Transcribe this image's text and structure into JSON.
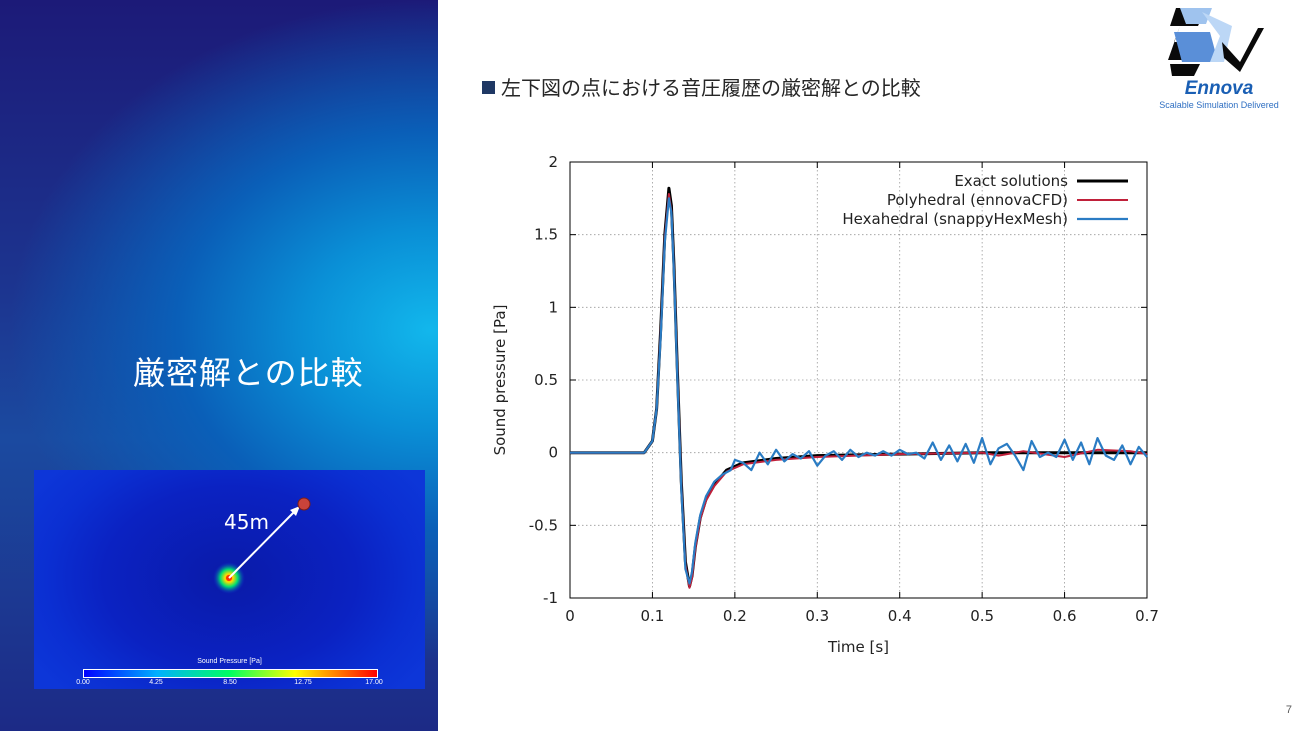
{
  "slide": {
    "title": "厳密解との比較",
    "heading": "左下図の点における音圧履歴の厳密解との比較",
    "page_number": "7"
  },
  "logo": {
    "name": "Ennova",
    "tagline": "Scalable Simulation Delivered"
  },
  "simulation_image": {
    "distance_label": "45m",
    "colorbar_title": "Sound Pressure [Pa]",
    "colorbar_ticks": [
      "0.00",
      "4.25",
      "8.50",
      "12.75",
      "17.00"
    ]
  },
  "colors": {
    "exact": "#000000",
    "polyhedral": "#c0203a",
    "hexahedral": "#2a7cc4",
    "left_panel": "#1b4aa0"
  },
  "chart_data": {
    "type": "line",
    "xlabel": "Time [s]",
    "ylabel": "Sound pressure [Pa]",
    "xlim": [
      0,
      0.7
    ],
    "ylim": [
      -1,
      2
    ],
    "xticks": [
      0,
      0.1,
      0.2,
      0.3,
      0.4,
      0.5,
      0.6,
      0.7
    ],
    "xtick_labels": [
      "0",
      "0.1",
      "0.2",
      "0.3",
      "0.4",
      "0.5",
      "0.6",
      "0.7"
    ],
    "yticks": [
      -1,
      -0.5,
      0,
      0.5,
      1,
      1.5,
      2
    ],
    "ytick_labels": [
      "-1",
      "-0.5",
      "0",
      "0.5",
      "1",
      "1.5",
      "2"
    ],
    "grid": true,
    "legend_position": "top-right",
    "series": [
      {
        "name": "Exact solutions",
        "color": "#000000",
        "x": [
          0,
          0.09,
          0.1,
          0.105,
          0.11,
          0.115,
          0.12,
          0.123,
          0.126,
          0.13,
          0.135,
          0.14,
          0.145,
          0.148,
          0.152,
          0.158,
          0.165,
          0.175,
          0.19,
          0.21,
          0.25,
          0.3,
          0.4,
          0.5,
          0.6,
          0.7
        ],
        "y": [
          0,
          0,
          0.08,
          0.3,
          0.85,
          1.5,
          1.82,
          1.7,
          1.3,
          0.6,
          -0.2,
          -0.75,
          -0.92,
          -0.85,
          -0.65,
          -0.45,
          -0.32,
          -0.22,
          -0.12,
          -0.07,
          -0.04,
          -0.02,
          -0.01,
          0,
          0,
          0
        ]
      },
      {
        "name": "Polyhedral (ennovaCFD)",
        "color": "#c0203a",
        "x": [
          0,
          0.09,
          0.1,
          0.105,
          0.11,
          0.115,
          0.12,
          0.123,
          0.126,
          0.13,
          0.135,
          0.14,
          0.145,
          0.148,
          0.152,
          0.158,
          0.165,
          0.175,
          0.19,
          0.21,
          0.25,
          0.3,
          0.4,
          0.5,
          0.52,
          0.55,
          0.6,
          0.64,
          0.68,
          0.7
        ],
        "y": [
          0,
          0,
          0.08,
          0.3,
          0.83,
          1.48,
          1.78,
          1.66,
          1.27,
          0.58,
          -0.22,
          -0.77,
          -0.93,
          -0.86,
          -0.66,
          -0.46,
          -0.33,
          -0.23,
          -0.13,
          -0.08,
          -0.05,
          -0.03,
          -0.01,
          0,
          -0.02,
          0.01,
          -0.03,
          0.02,
          0.01,
          -0.01
        ]
      },
      {
        "name": "Hexahedral (snappyHexMesh)",
        "color": "#2a7cc4",
        "x": [
          0,
          0.09,
          0.1,
          0.105,
          0.11,
          0.115,
          0.12,
          0.123,
          0.126,
          0.13,
          0.135,
          0.14,
          0.145,
          0.148,
          0.152,
          0.158,
          0.165,
          0.175,
          0.185,
          0.195,
          0.2,
          0.21,
          0.22,
          0.23,
          0.24,
          0.25,
          0.26,
          0.27,
          0.28,
          0.29,
          0.3,
          0.31,
          0.32,
          0.33,
          0.34,
          0.35,
          0.36,
          0.37,
          0.38,
          0.39,
          0.4,
          0.41,
          0.42,
          0.43,
          0.44,
          0.45,
          0.46,
          0.47,
          0.48,
          0.49,
          0.5,
          0.51,
          0.52,
          0.53,
          0.54,
          0.55,
          0.56,
          0.57,
          0.58,
          0.59,
          0.6,
          0.61,
          0.62,
          0.63,
          0.64,
          0.65,
          0.66,
          0.67,
          0.68,
          0.69,
          0.7
        ],
        "y": [
          0,
          0,
          0.08,
          0.3,
          0.8,
          1.45,
          1.75,
          1.65,
          1.25,
          0.55,
          -0.25,
          -0.8,
          -0.9,
          -0.82,
          -0.62,
          -0.43,
          -0.3,
          -0.2,
          -0.15,
          -0.12,
          -0.05,
          -0.07,
          -0.12,
          0.0,
          -0.08,
          0.02,
          -0.06,
          -0.01,
          -0.04,
          0.01,
          -0.09,
          -0.02,
          0.01,
          -0.05,
          0.02,
          -0.03,
          0.0,
          -0.02,
          0.01,
          -0.02,
          0.02,
          -0.01,
          0.0,
          -0.04,
          0.07,
          -0.05,
          0.05,
          -0.06,
          0.06,
          -0.07,
          0.1,
          -0.08,
          0.03,
          0.06,
          -0.02,
          -0.12,
          0.08,
          -0.03,
          0.0,
          -0.03,
          0.09,
          -0.05,
          0.07,
          -0.08,
          0.1,
          -0.02,
          -0.05,
          0.05,
          -0.08,
          0.04,
          -0.03
        ]
      }
    ]
  }
}
